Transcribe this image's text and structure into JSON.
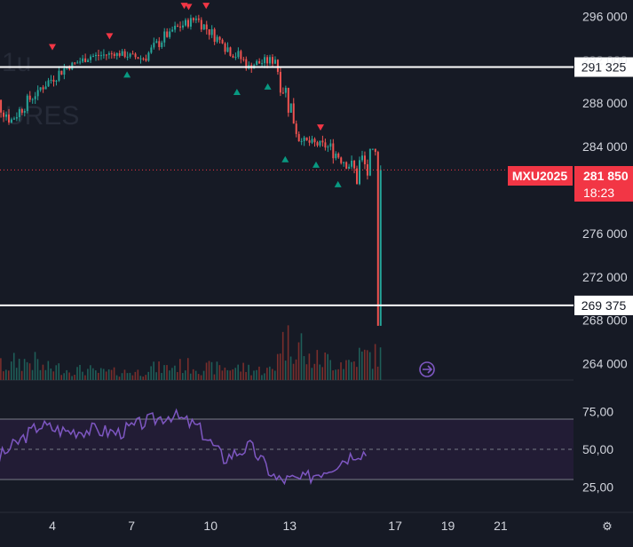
{
  "symbol": "MXU2025",
  "watermark": {
    "line1": "1u",
    "line2": "URES"
  },
  "colors": {
    "background": "#161a25",
    "up": "#26a69a",
    "down": "#ef5350",
    "rsi_line": "#7e57c2",
    "rsi_band": "#221c35",
    "price_tag": "#f23645",
    "axis_text": "#d1d4dc",
    "marker_up": "#089981",
    "marker_down": "#f23645"
  },
  "price_axis": {
    "ticks": [
      "296 000",
      "288 000",
      "284 000",
      "276 000",
      "272 000",
      "268 000",
      "264 000"
    ],
    "min": 262500,
    "max": 297500
  },
  "time_axis": {
    "ticks": [
      "4",
      "7",
      "10",
      "13",
      "17",
      "19",
      "21"
    ],
    "settings_icon": "⚙"
  },
  "horizontal_lines": [
    {
      "value": 291325,
      "label": "291 325"
    },
    {
      "value": 269375,
      "label": "269 375"
    }
  ],
  "last_price": {
    "value": 281850,
    "label": "281 850",
    "countdown": "18:23"
  },
  "goto_realtime_icon": "scroll-to-realtime-icon",
  "rsi": {
    "ticks": [
      "75,00",
      "50,00",
      "25,00"
    ],
    "upper": 70,
    "middle": 50,
    "lower": 30,
    "min": 15,
    "max": 80
  },
  "chart_data": {
    "type": "candlestick",
    "title": "MXU2025",
    "days": [
      {
        "day": "2",
        "open": 289500,
        "high": 290500,
        "low": 285500,
        "close": 286500,
        "volume": 0.35
      },
      {
        "day": "3",
        "open": 286500,
        "high": 289800,
        "low": 286200,
        "close": 289200,
        "volume": 0.45
      },
      {
        "day": "4",
        "open": 289200,
        "high": 291800,
        "low": 288600,
        "close": 291200,
        "volume": 0.3
      },
      {
        "day": "5",
        "open": 291200,
        "high": 292600,
        "low": 290600,
        "close": 292300,
        "volume": 0.25
      },
      {
        "day": "6",
        "open": 292300,
        "high": 293200,
        "low": 291800,
        "close": 292600,
        "volume": 0.2
      },
      {
        "day": "7",
        "open": 292600,
        "high": 293000,
        "low": 291200,
        "close": 292100,
        "volume": 0.2
      },
      {
        "day": "8",
        "open": 292100,
        "high": 295200,
        "low": 291800,
        "close": 294600,
        "volume": 0.3
      },
      {
        "day": "9",
        "open": 294600,
        "high": 296300,
        "low": 293800,
        "close": 295800,
        "volume": 0.35
      },
      {
        "day": "10",
        "open": 295800,
        "high": 296200,
        "low": 293000,
        "close": 293500,
        "volume": 0.3
      },
      {
        "day": "11",
        "open": 293500,
        "high": 294200,
        "low": 290500,
        "close": 291500,
        "volume": 0.3
      },
      {
        "day": "12",
        "open": 291500,
        "high": 292500,
        "low": 289800,
        "close": 292000,
        "volume": 0.25
      },
      {
        "day": "13",
        "open": 292000,
        "high": 292300,
        "low": 283500,
        "close": 284500,
        "volume": 0.95
      },
      {
        "day": "14",
        "open": 284500,
        "high": 285000,
        "low": 282500,
        "close": 284000,
        "volume": 0.5
      },
      {
        "day": "15",
        "open": 284000,
        "high": 285200,
        "low": 281000,
        "close": 282000,
        "volume": 0.45
      },
      {
        "day": "16",
        "open": 282000,
        "high": 283800,
        "low": 267500,
        "close": 281850,
        "volume": 0.6
      }
    ],
    "rsi": [
      {
        "day": "2",
        "value": 38
      },
      {
        "day": "3",
        "value": 52
      },
      {
        "day": "4",
        "value": 66
      },
      {
        "day": "5",
        "value": 62
      },
      {
        "day": "6",
        "value": 63
      },
      {
        "day": "7",
        "value": 61
      },
      {
        "day": "8",
        "value": 68
      },
      {
        "day": "9",
        "value": 73
      },
      {
        "day": "10",
        "value": 65
      },
      {
        "day": "11",
        "value": 44
      },
      {
        "day": "12",
        "value": 52
      },
      {
        "day": "13",
        "value": 30
      },
      {
        "day": "14",
        "value": 30
      },
      {
        "day": "15",
        "value": 38
      },
      {
        "day": "16",
        "value": 48
      }
    ],
    "signals": [
      {
        "day": "2",
        "kind": "buy",
        "price": 285000
      },
      {
        "day": "4",
        "kind": "sell",
        "price": 293200
      },
      {
        "day": "6",
        "kind": "sell",
        "price": 294200
      },
      {
        "day": "7",
        "kind": "buy",
        "price": 290600
      },
      {
        "day": "9",
        "kind": "sell",
        "price": 297000
      },
      {
        "day": "9",
        "kind": "sell",
        "price": 296900
      },
      {
        "day": "10",
        "kind": "sell",
        "price": 297000
      },
      {
        "day": "11",
        "kind": "buy",
        "price": 289000
      },
      {
        "day": "12",
        "kind": "buy",
        "price": 289500
      },
      {
        "day": "13",
        "kind": "buy",
        "price": 282800
      },
      {
        "day": "14",
        "kind": "buy",
        "price": 282300
      },
      {
        "day": "14",
        "kind": "sell",
        "price": 285800
      },
      {
        "day": "15",
        "kind": "buy",
        "price": 280500
      }
    ]
  }
}
